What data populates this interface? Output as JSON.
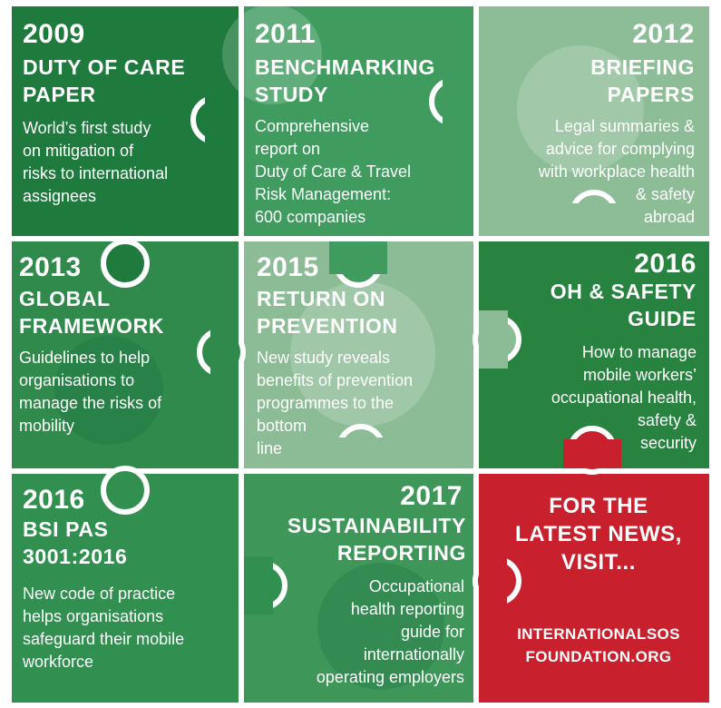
{
  "colors": {
    "dark_green": "#1f7a3e",
    "medium_green": "#3e9a5c",
    "light_green": "#8fbf98",
    "red": "#c8202c",
    "white": "#ffffff"
  },
  "pieces": [
    {
      "year": "2009",
      "title": "DUTY OF CARE\nPAPER",
      "desc": "World’s first study\non mitigation of\nrisks to international\nassignees"
    },
    {
      "year": "2011",
      "title": "BENCHMARKING\nSTUDY",
      "desc": "Comprehensive\nreport on\nDuty of Care & Travel\nRisk Management:\n600 companies"
    },
    {
      "year": "2012",
      "title": "BRIEFING\nPAPERS",
      "desc": "Legal summaries &\nadvice for complying\nwith workplace health\n& safety\nabroad"
    },
    {
      "year": "2013",
      "title": "GLOBAL\nFRAMEWORK",
      "desc": "Guidelines to help\norganisations to\nmanage the risks of\nmobility"
    },
    {
      "year": "2015",
      "title": "RETURN ON\nPREVENTION",
      "desc": "New study reveals\nbenefits of prevention\nprogrammes to the\nbottom\nline"
    },
    {
      "year": "2016",
      "title": "OH & SAFETY\nGUIDE",
      "desc": "How to manage\nmobile workers’\noccupational health,\nsafety &\nsecurity"
    },
    {
      "year": "2016",
      "title": "BSI PAS\n3001:2016",
      "desc": "New code of practice\nhelps organisations\nsafeguard their mobile\nworkforce"
    },
    {
      "year": "2017",
      "title": "SUSTAINABILITY\nREPORTING",
      "desc": "Occupational\nhealth reporting\nguide for\ninternationally\noperating employers"
    }
  ],
  "cta": {
    "heading": "FOR THE\nLATEST NEWS,\nVISIT...",
    "link": "INTERNATIONALSOS\nFOUNDATION.ORG"
  }
}
